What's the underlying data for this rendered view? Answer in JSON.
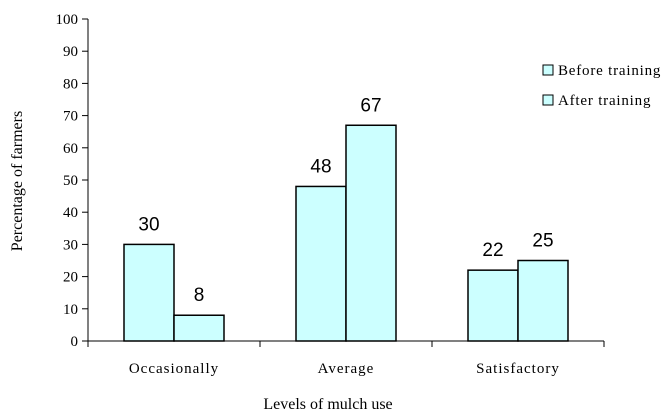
{
  "chart_data": {
    "type": "bar",
    "title": "",
    "xlabel": "Levels of mulch use",
    "ylabel": "Percentage of farmers",
    "categories": [
      "Occasionally",
      "Average",
      "Satisfactory"
    ],
    "series": [
      {
        "name": "Before training",
        "values": [
          30,
          48,
          22
        ],
        "color": "#ccffff"
      },
      {
        "name": "After training",
        "values": [
          8,
          67,
          25
        ],
        "color": "#ccffff"
      }
    ],
    "ylim": [
      0,
      100
    ],
    "yticks": [
      "0",
      "10",
      "20",
      "30",
      "40",
      "50",
      "60",
      "70",
      "80",
      "90",
      "100"
    ],
    "grid": false,
    "legend_position": "right",
    "data_labels": true,
    "bar_outline_color": "#000000"
  }
}
